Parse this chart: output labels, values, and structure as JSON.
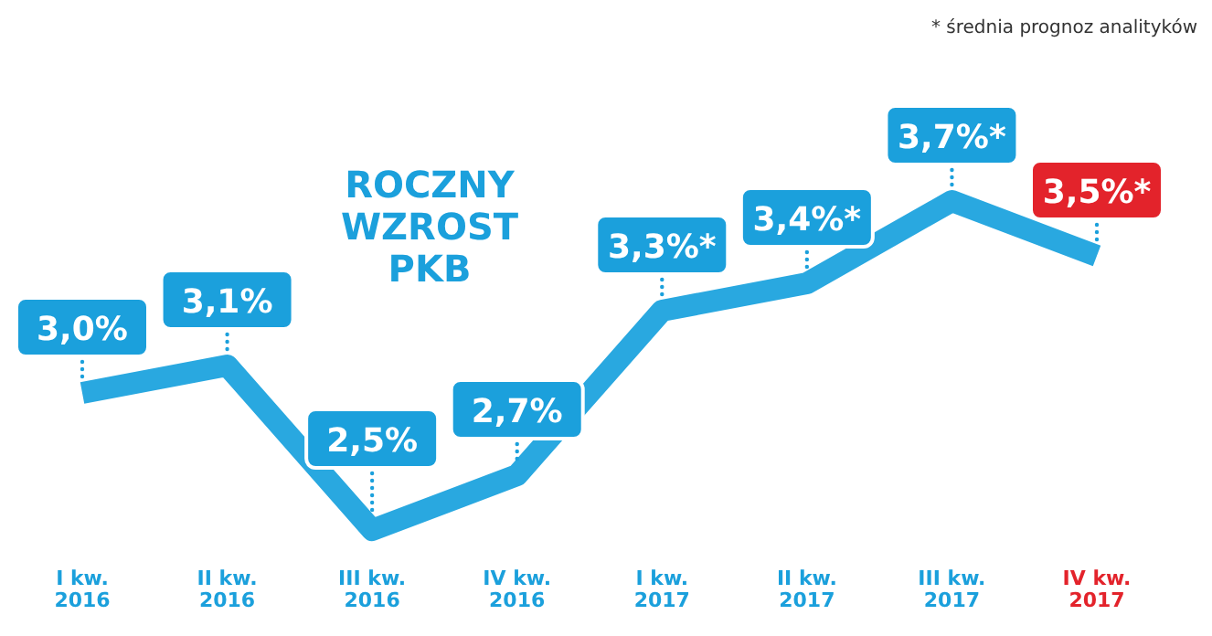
{
  "chart_data": {
    "type": "line",
    "title": "ROCZNY WZROST PKB",
    "categories": [
      "I kw. 2016",
      "II kw. 2016",
      "III kw. 2016",
      "IV kw. 2016",
      "I kw. 2017",
      "II kw. 2017",
      "III kw. 2017",
      "IV kw. 2017"
    ],
    "series": [
      {
        "color": "#29a8e0",
        "values": [
          3.0,
          3.1,
          2.5,
          2.7,
          3.3,
          3.4,
          3.7,
          3.5
        ],
        "value_labels": [
          "3,0%",
          "3,1%",
          "2,5%",
          "2,7%",
          "3,3%*",
          "3,4%*",
          "3,7%*",
          "3,5%*"
        ],
        "colors": [
          "#1ba0dc",
          "#1ba0dc",
          "#1ba0dc",
          "#1ba0dc",
          "#1ba0dc",
          "#1ba0dc",
          "#1ba0dc",
          "#e3232b"
        ]
      }
    ],
    "annotations": [
      "* średnia prognoz analityków"
    ]
  }
}
